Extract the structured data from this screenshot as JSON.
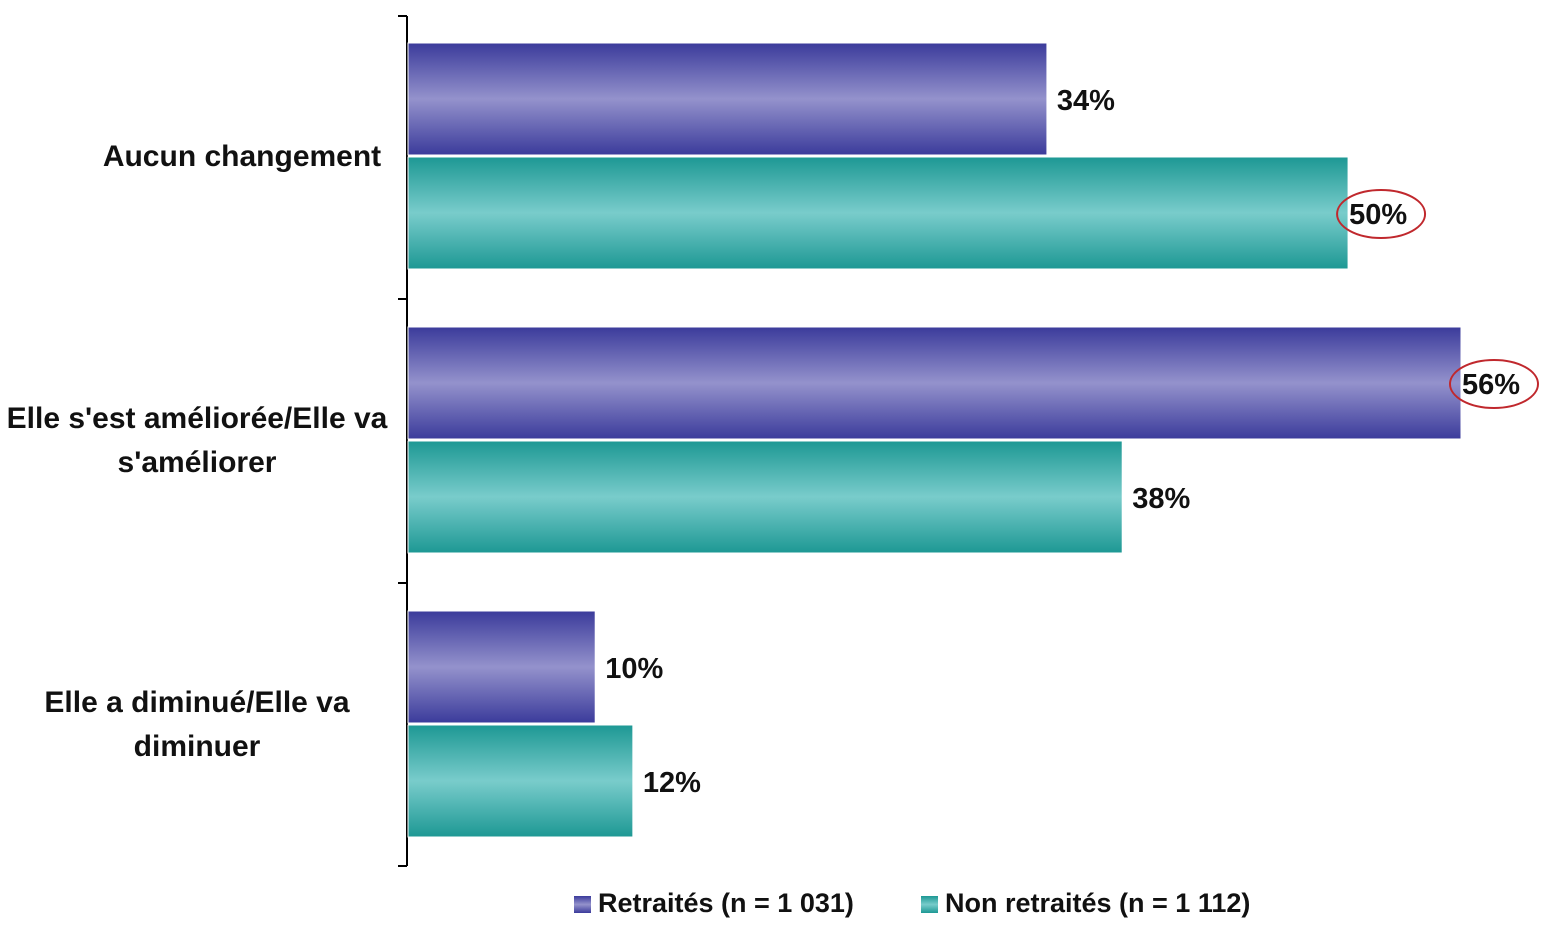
{
  "chart_data": {
    "type": "bar",
    "orientation": "horizontal",
    "categories": [
      "Aucun changement",
      "Elle s'est améliorée/Elle va s'améliorer",
      "Elle a diminué/Elle va diminuer"
    ],
    "series": [
      {
        "name": "Retraités (n = 1 031)",
        "values": [
          34,
          56,
          10
        ],
        "labels": [
          "34%",
          "56%",
          "10%"
        ],
        "color": "#3f3f9e"
      },
      {
        "name": "Non retraités (n = 1 112)",
        "values": [
          50,
          38,
          12
        ],
        "labels": [
          "50%",
          "38%",
          "12%"
        ],
        "color": "#1f9c98"
      }
    ],
    "highlighted": [
      {
        "series": 1,
        "category": 0
      },
      {
        "series": 0,
        "category": 1
      }
    ],
    "highlight_color": "#c0282d",
    "xlim": [
      0,
      56
    ],
    "grid": false,
    "legend_position": "bottom"
  }
}
